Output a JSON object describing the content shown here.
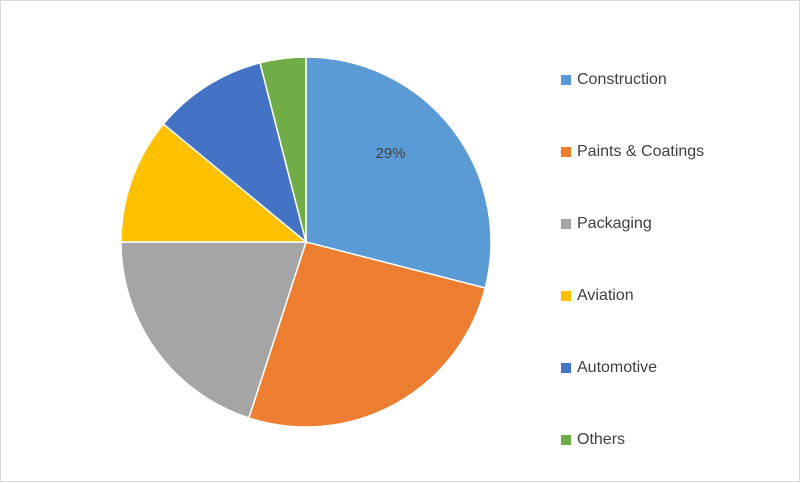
{
  "chart_data": {
    "type": "pie",
    "title": "",
    "unit": "%",
    "legend_position": "right",
    "start_angle_deg": 0,
    "direction": "clockwise",
    "slices": [
      {
        "name": "Construction",
        "value": 29,
        "color": "#5B9BD5",
        "label": "29%"
      },
      {
        "name": "Paints & Coatings",
        "value": 26,
        "color": "#ED7D31",
        "label": ""
      },
      {
        "name": "Packaging",
        "value": 20,
        "color": "#A5A5A5",
        "label": ""
      },
      {
        "name": "Aviation",
        "value": 11,
        "color": "#FFC000",
        "label": ""
      },
      {
        "name": "Automotive",
        "value": 10,
        "color": "#4472C4",
        "label": ""
      },
      {
        "name": "Others",
        "value": 4,
        "color": "#70AD47",
        "label": ""
      }
    ]
  }
}
